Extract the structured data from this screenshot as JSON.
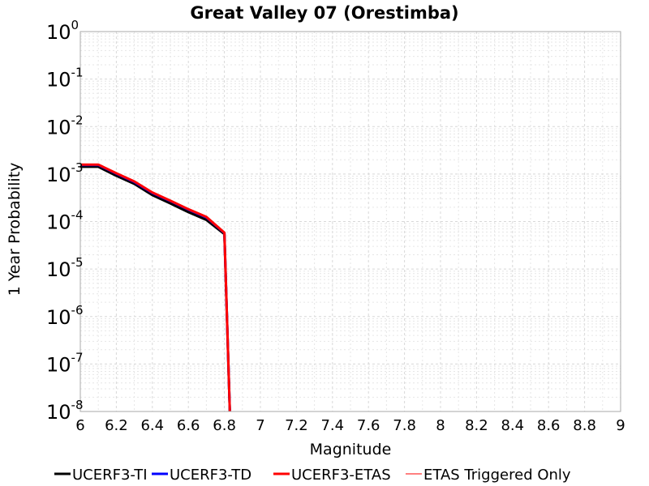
{
  "chart_data": {
    "type": "line",
    "title": "Great Valley 07 (Orestimba)",
    "xlabel": "Magnitude",
    "ylabel": "1 Year Probability",
    "xlim": [
      6,
      9
    ],
    "ylim": [
      1e-08,
      1
    ],
    "yscale": "log",
    "grid": true,
    "legend_position": "bottom",
    "x_ticks": [
      "6",
      "6.2",
      "6.4",
      "6.6",
      "6.8",
      "7",
      "7.2",
      "7.4",
      "7.6",
      "7.8",
      "8",
      "8.2",
      "8.4",
      "8.6",
      "8.8",
      "9"
    ],
    "y_ticks": [
      {
        "base": "10",
        "exp": "0"
      },
      {
        "base": "10",
        "exp": "-1"
      },
      {
        "base": "10",
        "exp": "-2"
      },
      {
        "base": "10",
        "exp": "-3"
      },
      {
        "base": "10",
        "exp": "-4"
      },
      {
        "base": "10",
        "exp": "-5"
      },
      {
        "base": "10",
        "exp": "-6"
      },
      {
        "base": "10",
        "exp": "-7"
      },
      {
        "base": "10",
        "exp": "-8"
      }
    ],
    "series": [
      {
        "name": "UCERF3-TI",
        "color": "#000000",
        "width": 3,
        "x": [
          6.0,
          6.1,
          6.2,
          6.3,
          6.4,
          6.5,
          6.6,
          6.7,
          6.8,
          6.83
        ],
        "y": [
          0.00142,
          0.00142,
          0.00092,
          0.00062,
          0.00036,
          0.00024,
          0.000158,
          0.000108,
          5.45e-05,
          1e-08
        ]
      },
      {
        "name": "UCERF3-TD",
        "color": "#0000ff",
        "width": 3,
        "x": [
          6.0,
          6.1,
          6.2,
          6.3,
          6.4,
          6.5,
          6.6,
          6.7,
          6.8,
          6.83
        ],
        "y": [
          0.00155,
          0.00155,
          0.00102,
          0.00068,
          0.0004,
          0.00027,
          0.000178,
          0.000122,
          5.75e-05,
          1e-08
        ]
      },
      {
        "name": "UCERF3-ETAS",
        "color": "#ff0000",
        "width": 3,
        "x": [
          6.0,
          6.1,
          6.2,
          6.3,
          6.4,
          6.5,
          6.6,
          6.7,
          6.8,
          6.83
        ],
        "y": [
          0.00158,
          0.00158,
          0.00104,
          0.0007,
          0.00041,
          0.000275,
          0.000182,
          0.000125,
          5.85e-05,
          1e-08
        ]
      },
      {
        "name": "ETAS Triggered Only",
        "color": "#ff0000",
        "width": 1,
        "x": [],
        "y": []
      }
    ]
  }
}
